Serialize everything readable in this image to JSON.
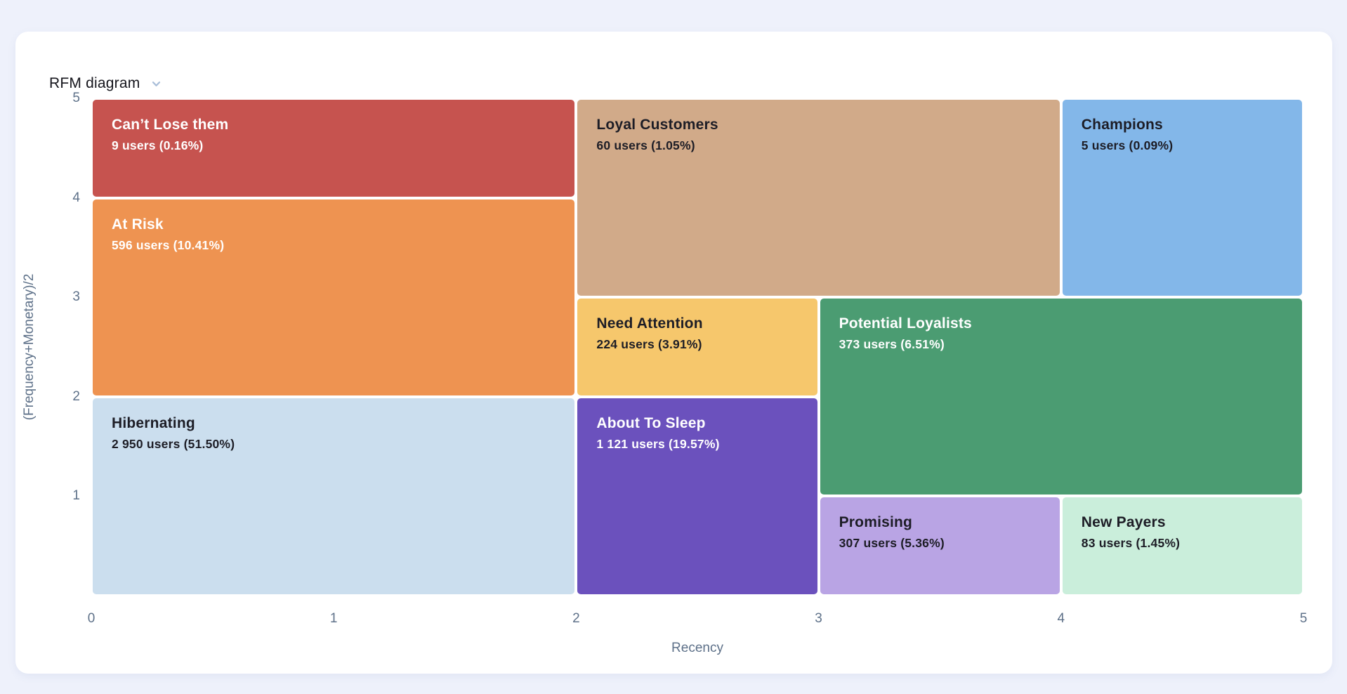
{
  "page": {
    "background_color": "#eef1fb",
    "card_color": "#ffffff"
  },
  "header": {
    "title": "RFM diagram",
    "title_color": "#15151c",
    "chevron_icon": "chevron-down",
    "chevron_color": "#a9bed9"
  },
  "chart_data": {
    "type": "heatmap",
    "subtype": "rfm-segment-grid",
    "title": "RFM diagram",
    "xlabel": "Recency",
    "ylabel": "(Frequency+Monetary)/2",
    "xlim": [
      0,
      5
    ],
    "ylim": [
      0,
      5
    ],
    "x_ticks": [
      "0",
      "1",
      "2",
      "3",
      "4",
      "5"
    ],
    "y_ticks": [
      "5",
      "4",
      "3",
      "2",
      "1"
    ],
    "grid": false,
    "legend": "none",
    "axis_text_color": "#5e7189",
    "gap_color": "#ffffff",
    "segments": [
      {
        "id": "cant-lose-them",
        "label": "Can’t Lose them",
        "users": 9,
        "percent": 0.16,
        "value_text": "9 users (0.16%)",
        "x": [
          0,
          2
        ],
        "y": [
          4,
          5
        ],
        "color": "#c6534f",
        "text_color": "#ffffff"
      },
      {
        "id": "at-risk",
        "label": "At Risk",
        "users": 596,
        "percent": 10.41,
        "value_text": "596 users (10.41%)",
        "x": [
          0,
          2
        ],
        "y": [
          2,
          4
        ],
        "color": "#ee9351",
        "text_color": "#ffffff"
      },
      {
        "id": "hibernating",
        "label": "Hibernating",
        "users": 2950,
        "percent": 51.5,
        "value_text": "2 950 users (51.50%)",
        "x": [
          0,
          2
        ],
        "y": [
          0,
          2
        ],
        "color": "#cbdeee",
        "text_color": "#1d1d26"
      },
      {
        "id": "loyal-customers",
        "label": "Loyal Customers",
        "users": 60,
        "percent": 1.05,
        "value_text": "60 users (1.05%)",
        "x": [
          2,
          4
        ],
        "y": [
          3,
          5
        ],
        "color": "#d1aa89",
        "text_color": "#1d1d26"
      },
      {
        "id": "champions",
        "label": "Champions",
        "users": 5,
        "percent": 0.09,
        "value_text": "5 users (0.09%)",
        "x": [
          4,
          5
        ],
        "y": [
          3,
          5
        ],
        "color": "#83b7e9",
        "text_color": "#1d1d26"
      },
      {
        "id": "need-attention",
        "label": "Need Attention",
        "users": 224,
        "percent": 3.91,
        "value_text": "224 users (3.91%)",
        "x": [
          2,
          3
        ],
        "y": [
          2,
          3
        ],
        "color": "#f6c76c",
        "text_color": "#1d1d26"
      },
      {
        "id": "potential-loyalists",
        "label": "Potential Loyalists",
        "users": 373,
        "percent": 6.51,
        "value_text": "373 users (6.51%)",
        "x": [
          3,
          5
        ],
        "y": [
          1,
          3
        ],
        "color": "#4b9c72",
        "text_color": "#ffffff"
      },
      {
        "id": "about-to-sleep",
        "label": "About To Sleep",
        "users": 1121,
        "percent": 19.57,
        "value_text": "1 121 users (19.57%)",
        "x": [
          2,
          3
        ],
        "y": [
          0,
          2
        ],
        "color": "#6b51bd",
        "text_color": "#ffffff"
      },
      {
        "id": "promising",
        "label": "Promising",
        "users": 307,
        "percent": 5.36,
        "value_text": "307 users (5.36%)",
        "x": [
          3,
          4
        ],
        "y": [
          0,
          1
        ],
        "color": "#b9a4e4",
        "text_color": "#1d1d26"
      },
      {
        "id": "new-payers",
        "label": "New Payers",
        "users": 83,
        "percent": 1.45,
        "value_text": "83 users (1.45%)",
        "x": [
          4,
          5
        ],
        "y": [
          0,
          1
        ],
        "color": "#caeedb",
        "text_color": "#1d1d26"
      }
    ]
  }
}
